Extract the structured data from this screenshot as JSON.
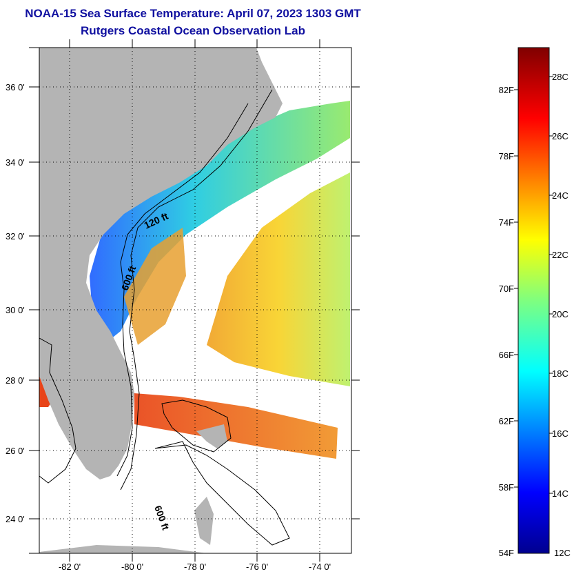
{
  "title": "NOAA-15 Sea Surface Temperature:  April 07, 2023 1303 GMT",
  "subtitle": "Rutgers Coastal Ocean Observation Lab",
  "latitude_ticks": [
    "24 0'",
    "26 0'",
    "28 0'",
    "30 0'",
    "32 0'",
    "34 0'",
    "36 0'"
  ],
  "longitude_ticks": [
    "-82 0'",
    "-80 0'",
    "-78 0'",
    "-76 0'",
    "-74 0'"
  ],
  "contour_labels": {
    "c120": "120 ft",
    "c600a": "600 ft",
    "c600b": "600 ft"
  },
  "colorbar": {
    "fahrenheit_labels": [
      "82F",
      "78F",
      "74F",
      "70F",
      "66F",
      "62F",
      "58F",
      "54F"
    ],
    "celsius_labels": [
      "28C",
      "26C",
      "24C",
      "22C",
      "20C",
      "18C",
      "16C",
      "14C",
      "12C"
    ],
    "min_c": 12,
    "max_c": 29.2
  },
  "colors": {
    "land": "#b4b4b4",
    "title": "#1010a0",
    "cold": "#00008f",
    "warm": "#800000"
  }
}
